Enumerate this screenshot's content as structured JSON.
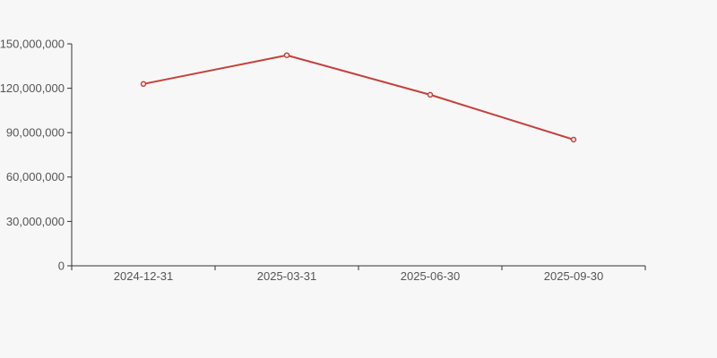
{
  "chart_data": {
    "type": "line",
    "title": "",
    "xlabel": "",
    "ylabel": "",
    "categories": [
      "2024-12-31",
      "2025-03-31",
      "2025-06-30",
      "2025-09-30"
    ],
    "series": [
      {
        "name": "value",
        "values": [
          122900000,
          142300000,
          115600000,
          85300000
        ]
      }
    ],
    "ylim": [
      0,
      150000000
    ],
    "y_ticks": [
      0,
      30000000,
      60000000,
      90000000,
      120000000,
      150000000
    ],
    "y_tick_labels": [
      "0",
      "30,000,000",
      "60,000,000",
      "90,000,000",
      "120,000,000",
      "150,000,000"
    ],
    "grid": false,
    "legend_position": "none",
    "marker_shape": "hollow-circle",
    "colors": {
      "line": "#c3423c",
      "marker_fill": "#fbf6f5",
      "axis": "#333333",
      "tick_text": "#555555",
      "background": "#f7f7f7"
    }
  }
}
